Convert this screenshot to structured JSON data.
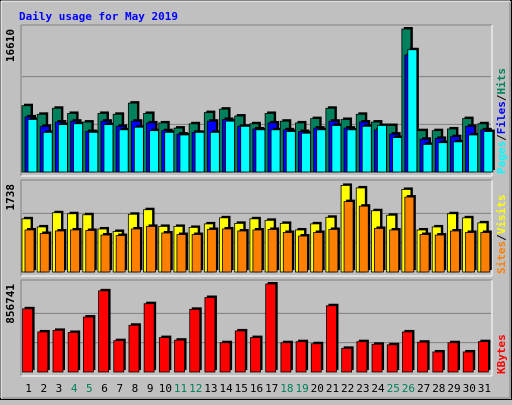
{
  "chart_data": {
    "type": "bar",
    "title": "Daily usage for May 2019",
    "days": [
      "1",
      "2",
      "3",
      "4",
      "5",
      "6",
      "7",
      "8",
      "9",
      "10",
      "11",
      "12",
      "13",
      "14",
      "15",
      "16",
      "17",
      "18",
      "19",
      "20",
      "21",
      "22",
      "23",
      "24",
      "25",
      "26",
      "27",
      "28",
      "29",
      "30",
      "31"
    ],
    "weekend_days": [
      "4",
      "5",
      "11",
      "12",
      "18",
      "19",
      "25",
      "26"
    ],
    "colors": {
      "hits": "#00805c",
      "files": "#0000ff",
      "pages": "#00ffff",
      "visits": "#ffff00",
      "sites": "#ff8000",
      "kbytes": "#ff0000",
      "weekend_label": "#00805c",
      "weekday_label": "#000000",
      "title": "#0000ff",
      "grid": "#808080",
      "panel_bg": "#c0c0c0"
    },
    "panels": [
      {
        "id": "hits",
        "max_label": "16610",
        "ymax": 16610,
        "legend": [
          {
            "text": "Hits",
            "color": "#00805c"
          },
          {
            "text": "/",
            "color": "#000000"
          },
          {
            "text": "Files",
            "color": "#0000ff"
          },
          {
            "text": "/",
            "color": "#000000"
          },
          {
            "text": "Pages",
            "color": "#00ffff"
          }
        ],
        "series": [
          {
            "name": "Hits",
            "color": "#00805c",
            "values": [
              7700,
              6700,
              7400,
              6800,
              5800,
              6800,
              6700,
              8000,
              6800,
              5700,
              5100,
              5600,
              6900,
              7300,
              6500,
              5600,
              6800,
              5900,
              5700,
              6200,
              7400,
              6100,
              6700,
              5800,
              5400,
              16610,
              4800,
              4800,
              5000,
              6200,
              5600
            ]
          },
          {
            "name": "Files",
            "color": "#0000ff",
            "values": [
              6400,
              5300,
              5800,
              5900,
              4700,
              5900,
              5300,
              5900,
              5700,
              4800,
              4400,
              4600,
              5900,
              6100,
              5300,
              5000,
              5700,
              4900,
              4700,
              5100,
              5900,
              5100,
              5800,
              4900,
              4400,
              13600,
              3800,
              3900,
              4100,
              5300,
              4900
            ]
          },
          {
            "name": "Pages",
            "color": "#00ffff",
            "values": [
              6100,
              4600,
              5500,
              5600,
              4600,
              5500,
              4900,
              5200,
              4800,
              4600,
              4300,
              4600,
              4600,
              5900,
              5300,
              4900,
              4900,
              4700,
              4500,
              4900,
              5400,
              4900,
              5300,
              5400,
              4000,
              14200,
              3200,
              3400,
              3500,
              4300,
              4700
            ]
          }
        ]
      },
      {
        "id": "visits",
        "max_label": "1738",
        "ymax": 1738,
        "legend": [
          {
            "text": "Visits",
            "color": "#ffff00"
          },
          {
            "text": "/",
            "color": "#000000"
          },
          {
            "text": "Sites",
            "color": "#ff8000"
          }
        ],
        "series": [
          {
            "name": "Visits",
            "color": "#ffff00",
            "values": [
              1050,
              890,
              1170,
              1150,
              1130,
              850,
              800,
              1140,
              1230,
              900,
              900,
              880,
              950,
              1070,
              960,
              1050,
              1020,
              960,
              830,
              950,
              1080,
              1710,
              1660,
              1210,
              1120,
              1630,
              830,
              890,
              1150,
              1070,
              970
            ]
          },
          {
            "name": "Sites",
            "color": "#ff8000",
            "values": [
              830,
              760,
              810,
              830,
              820,
              730,
              720,
              850,
              900,
              770,
              740,
              740,
              840,
              850,
              810,
              830,
              840,
              780,
              710,
              780,
              840,
              1390,
              1300,
              860,
              830,
              1480,
              740,
              730,
              810,
              780,
              780
            ]
          }
        ]
      },
      {
        "id": "kbytes",
        "max_label": "856741",
        "ymax": 856741,
        "legend": [
          {
            "text": "KBytes",
            "color": "#ff0000"
          }
        ],
        "series": [
          {
            "name": "KBytes",
            "color": "#ff0000",
            "values": [
              615000,
              390000,
              405000,
              385000,
              535000,
              790000,
              305000,
              455000,
              665000,
              335000,
              310000,
              610000,
              725000,
              285000,
              400000,
              335000,
              856741,
              285000,
              295000,
              275000,
              645000,
              230000,
              295000,
              270000,
              265000,
              390000,
              290000,
              195000,
              285000,
              195000,
              295000
            ]
          }
        ]
      }
    ]
  }
}
